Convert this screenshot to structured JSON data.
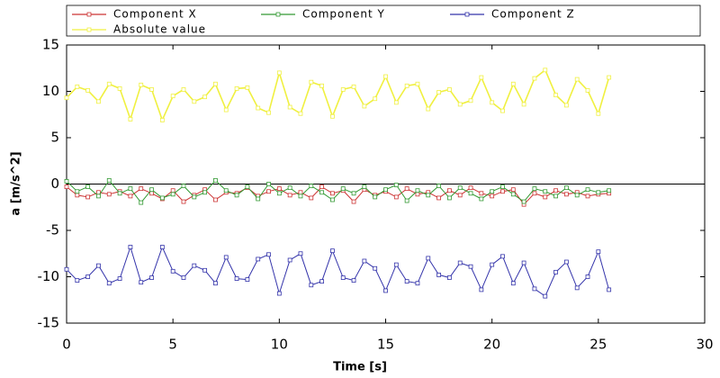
{
  "chart_data": {
    "type": "line",
    "x_label": "Time [s]",
    "y_label": "a [m/s^2]",
    "x": [
      0,
      0.5,
      1,
      1.5,
      2,
      2.5,
      3,
      3.5,
      4,
      4.5,
      5,
      5.5,
      6,
      6.5,
      7,
      7.5,
      8,
      8.5,
      9,
      9.5,
      10,
      10.5,
      11,
      11.5,
      12,
      12.5,
      13,
      13.5,
      14,
      14.5,
      15,
      15.5,
      16,
      16.5,
      17,
      17.5,
      18,
      18.5,
      19,
      19.5,
      20,
      20.5,
      21,
      21.5,
      22,
      22.5,
      23,
      23.5,
      24,
      24.5,
      25,
      25.5
    ],
    "series": [
      {
        "name": "Component X",
        "color": "#cc3333",
        "values": [
          -0.3,
          -1.2,
          -1.4,
          -0.9,
          -1.1,
          -0.8,
          -1.3,
          -0.5,
          -1.0,
          -1.6,
          -0.7,
          -1.9,
          -1.2,
          -0.6,
          -1.7,
          -0.9,
          -1.0,
          -0.4,
          -1.3,
          -0.8,
          -0.5,
          -1.2,
          -0.9,
          -1.5,
          -0.3,
          -1.0,
          -0.7,
          -1.9,
          -0.6,
          -1.2,
          -0.8,
          -1.4,
          -0.5,
          -1.1,
          -0.9,
          -1.5,
          -0.7,
          -1.2,
          -0.4,
          -1.0,
          -1.3,
          -0.8,
          -0.6,
          -2.2,
          -1.0,
          -1.4,
          -0.7,
          -1.1,
          -0.9,
          -1.3,
          -1.1,
          -1.0
        ]
      },
      {
        "name": "Component Y",
        "color": "#339933",
        "values": [
          0.3,
          -0.8,
          -0.3,
          -1.3,
          0.4,
          -1.0,
          -0.5,
          -2.0,
          -0.6,
          -1.5,
          -1.1,
          -0.2,
          -1.4,
          -0.9,
          0.4,
          -0.7,
          -1.2,
          -0.3,
          -1.6,
          0.0,
          -1.0,
          -0.4,
          -1.3,
          -0.2,
          -0.9,
          -1.7,
          -0.5,
          -1.0,
          -0.3,
          -1.4,
          -0.6,
          -0.1,
          -1.8,
          -0.7,
          -1.2,
          -0.2,
          -1.5,
          -0.4,
          -1.0,
          -1.6,
          -0.8,
          -0.3,
          -1.1,
          -1.9,
          -0.5,
          -0.8,
          -1.3,
          -0.4,
          -1.2,
          -0.6,
          -0.9,
          -0.7
        ]
      },
      {
        "name": "Component Z",
        "color": "#3333aa",
        "values": [
          -9.2,
          -10.4,
          -10.0,
          -8.8,
          -10.7,
          -10.2,
          -6.8,
          -10.6,
          -10.1,
          -6.8,
          -9.4,
          -10.1,
          -8.8,
          -9.3,
          -10.7,
          -7.9,
          -10.2,
          -10.3,
          -8.1,
          -7.6,
          -11.8,
          -8.2,
          -7.5,
          -10.9,
          -10.5,
          -7.2,
          -10.1,
          -10.4,
          -8.3,
          -9.1,
          -11.5,
          -8.7,
          -10.5,
          -10.7,
          -8.0,
          -9.8,
          -10.1,
          -8.5,
          -8.9,
          -11.4,
          -8.7,
          -7.8,
          -10.7,
          -8.5,
          -11.3,
          -12.1,
          -9.5,
          -8.4,
          -11.2,
          -10.0,
          -7.3,
          -11.4
        ]
      },
      {
        "name": "Absolute value",
        "color": "#f0f040",
        "values": [
          9.3,
          10.5,
          10.1,
          8.9,
          10.8,
          10.3,
          7.0,
          10.7,
          10.2,
          6.9,
          9.5,
          10.2,
          8.9,
          9.4,
          10.8,
          8.0,
          10.3,
          10.4,
          8.2,
          7.7,
          12.0,
          8.3,
          7.6,
          11.0,
          10.6,
          7.3,
          10.2,
          10.5,
          8.4,
          9.2,
          11.6,
          8.8,
          10.6,
          10.8,
          8.1,
          9.9,
          10.2,
          8.6,
          9.0,
          11.5,
          8.8,
          7.9,
          10.8,
          8.6,
          11.4,
          12.3,
          9.6,
          8.5,
          11.3,
          10.1,
          7.6,
          11.5
        ]
      }
    ],
    "xlim": [
      0,
      30
    ],
    "xticks": [
      0,
      5,
      10,
      15,
      20,
      25,
      30
    ],
    "ylim": [
      -15,
      15
    ],
    "yticks": [
      -15,
      -10,
      -5,
      0,
      5,
      10,
      15
    ],
    "legend": "top"
  }
}
